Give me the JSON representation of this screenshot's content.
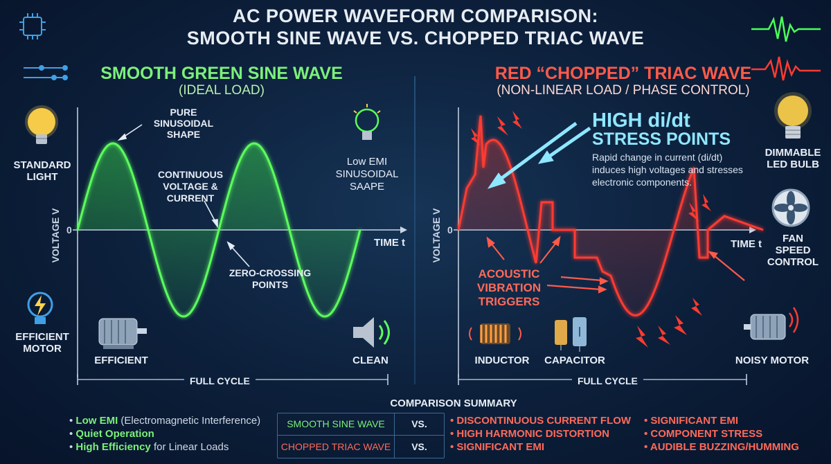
{
  "header": {
    "title_line1": "AC POWER WAVEFORM COMPARISON:",
    "title_line2": "SMOOTH SINE WAVE VS. CHOPPED TRIAC WAVE"
  },
  "left": {
    "title": "SMOOTH GREEN SINE WAVE",
    "subtitle": "(IDEAL LOAD)",
    "annotation_peak": [
      "PURE",
      "SINUSOIDAL",
      "SHAPE"
    ],
    "annotation_continuous": [
      "CONTINUOUS",
      "VOLTAGE &",
      "CURRENT"
    ],
    "annotation_zero": [
      "ZERO-CROSSING",
      "POINTS"
    ],
    "annotation_emi": [
      "Low EMI",
      "SINUSOIDAL",
      "SAAPE"
    ],
    "y_axis": "VOLTAGE V",
    "x_axis": "TIME t",
    "origin": "0",
    "cycle": "FULL CYCLE",
    "icon_labels": {
      "standard_light": [
        "STANDARD",
        "LIGHT"
      ],
      "efficient_motor": [
        "EFFICIENT",
        "MOTOR"
      ],
      "efficient": "EFFICIENT",
      "clean": "CLEAN"
    }
  },
  "right": {
    "title": "RED “CHOPPED” TRIAC WAVE",
    "subtitle": "(NON-LINEAR LOAD / PHASE CONTROL)",
    "stress_title_1": "HIGH di/dt",
    "stress_title_2": "STRESS POINTS",
    "stress_desc": [
      "Rapid change in current (di/dt)",
      "induces high voltages and stresses",
      "electronic components."
    ],
    "acoustic": [
      "ACOUSTIC",
      "VIBRATION",
      "TRIGGERS"
    ],
    "y_axis": "VOLTAGE V",
    "x_axis": "TIME t",
    "origin": "0",
    "cycle": "FULL CYCLE",
    "icon_labels": {
      "dimmable": [
        "DIMMABLE",
        "LED BULB"
      ],
      "fan": [
        "FAN",
        "SPEED",
        "CONTROL"
      ],
      "inductor": "INDUCTOR",
      "capacitor": "CAPACITOR",
      "noisy_motor": "NOISY MOTOR"
    }
  },
  "summary": {
    "heading": "COMPARISON SUMMARY",
    "row1_left": "SMOOTH SINE WAVE",
    "row1_vs": "VS.",
    "row2_left": "CHOPPED TRIAC WAVE",
    "row2_vs": "VS.",
    "benefits": [
      {
        "bold": "Low EMI",
        "rest": " (Electromagnetic Interference)"
      },
      {
        "bold": "Quiet Operation",
        "rest": ""
      },
      {
        "bold": "High Efficiency",
        "rest": " for Linear Loads"
      }
    ],
    "issues_mid": [
      "DISCONTINUOUS CURRENT FLOW",
      "HIGH HARMONIC DISTORTION",
      "SIGNIFICANT EMI"
    ],
    "issues_right": [
      "SIGNIFICANT EMI",
      "COMPONENT STRESS",
      "AUDIBLE BUZZING/HUMMING"
    ]
  },
  "colors": {
    "sine": "#5cff5c",
    "triac": "#ff3b30",
    "accent": "#8fe7ff"
  }
}
